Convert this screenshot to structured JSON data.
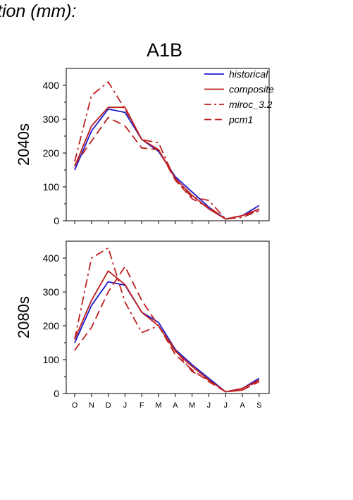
{
  "header": {
    "title_fragment": "tion (mm):",
    "scenario": "A1B"
  },
  "colors": {
    "historical": "#1a1acc",
    "composite": "#bf1e1e",
    "miroc": "#bf1e1e",
    "pcm1": "#bf1e1e"
  },
  "chart_data": [
    {
      "type": "line",
      "panel": "2040s",
      "title": "A1B",
      "ylabel": "2040s",
      "categories": [
        "O",
        "N",
        "D",
        "J",
        "F",
        "M",
        "A",
        "M",
        "J",
        "J",
        "A",
        "S"
      ],
      "ylim": [
        0,
        450
      ],
      "yticks": [
        0,
        100,
        200,
        300,
        400
      ],
      "show_x_tick_labels": false,
      "legend_position": "top-right",
      "series": [
        {
          "name": "historical",
          "style": "solid",
          "color": "#1a1acc",
          "values": [
            150,
            265,
            330,
            320,
            240,
            205,
            130,
            85,
            40,
            5,
            15,
            45
          ]
        },
        {
          "name": "composite",
          "style": "solid",
          "color": "#bf1e1e",
          "values": [
            160,
            280,
            335,
            335,
            240,
            210,
            125,
            75,
            35,
            5,
            15,
            35
          ]
        },
        {
          "name": "miroc_3.2",
          "style": "dashdot",
          "color": "#bf1e1e",
          "values": [
            175,
            370,
            410,
            330,
            240,
            230,
            120,
            70,
            60,
            5,
            10,
            30
          ]
        },
        {
          "name": "pcm1",
          "style": "dash",
          "color": "#bf1e1e",
          "values": [
            165,
            235,
            305,
            280,
            215,
            210,
            120,
            65,
            40,
            5,
            15,
            30
          ]
        }
      ]
    },
    {
      "type": "line",
      "panel": "2080s",
      "ylabel": "2080s",
      "categories": [
        "O",
        "N",
        "D",
        "J",
        "F",
        "M",
        "A",
        "M",
        "J",
        "J",
        "A",
        "S"
      ],
      "ylim": [
        0,
        450
      ],
      "yticks": [
        0,
        100,
        200,
        300,
        400
      ],
      "show_x_tick_labels": true,
      "series": [
        {
          "name": "historical",
          "style": "solid",
          "color": "#1a1acc",
          "values": [
            150,
            260,
            330,
            320,
            240,
            210,
            130,
            85,
            45,
            5,
            15,
            45
          ]
        },
        {
          "name": "composite",
          "style": "solid",
          "color": "#bf1e1e",
          "values": [
            160,
            275,
            362,
            322,
            240,
            200,
            125,
            80,
            40,
            5,
            15,
            40
          ]
        },
        {
          "name": "miroc_3.2",
          "style": "dashdot",
          "color": "#bf1e1e",
          "values": [
            160,
            400,
            430,
            270,
            180,
            200,
            130,
            65,
            40,
            5,
            10,
            40
          ]
        },
        {
          "name": "pcm1",
          "style": "dash",
          "color": "#bf1e1e",
          "values": [
            128,
            195,
            300,
            375,
            275,
            200,
            115,
            70,
            35,
            5,
            10,
            35
          ]
        }
      ]
    }
  ]
}
